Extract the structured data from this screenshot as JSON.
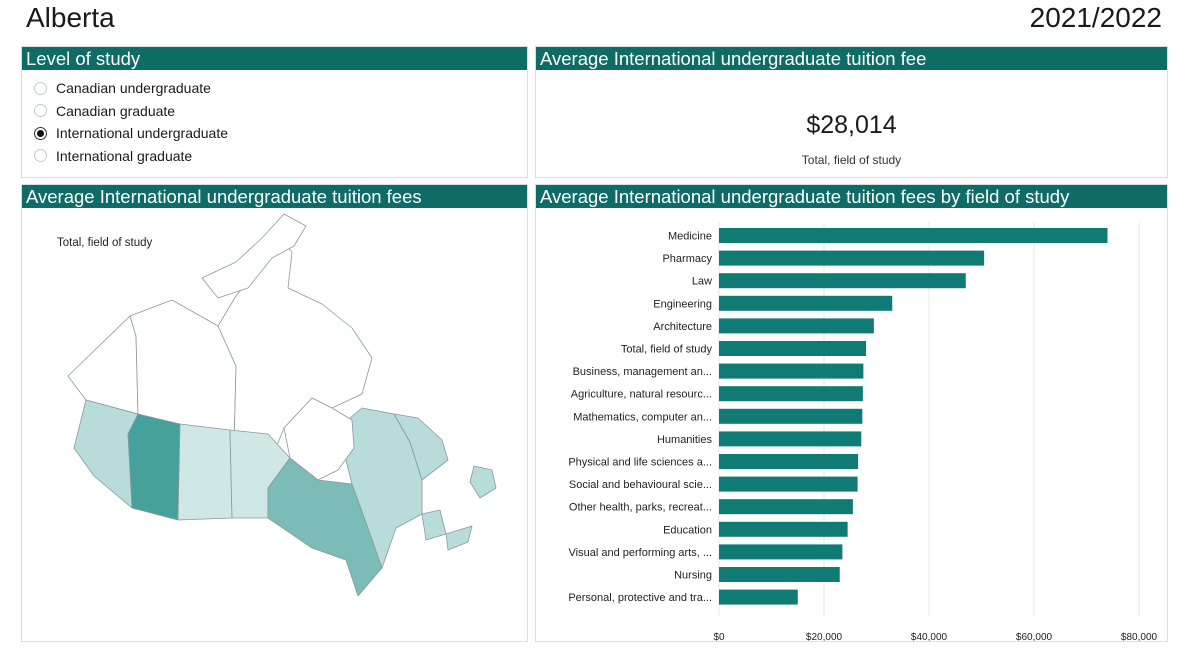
{
  "header": {
    "region": "Alberta",
    "year": "2021/2022"
  },
  "level_panel": {
    "title": "Level of study",
    "options": [
      {
        "label": "Canadian undergraduate",
        "selected": false
      },
      {
        "label": "Canadian graduate",
        "selected": false
      },
      {
        "label": "International undergraduate",
        "selected": true
      },
      {
        "label": "International graduate",
        "selected": false
      }
    ]
  },
  "average_panel": {
    "title": "Average International undergraduate tuition fee",
    "value": "$28,014",
    "caption": "Total, field of study"
  },
  "map_panel": {
    "title": "Average International undergraduate tuition fees",
    "subtitle": "Total, field of study",
    "colors": {
      "highlight": "#46a19c",
      "medium": "#7cbcb8",
      "light": "#b7dcda",
      "lighter": "#cfe7e5",
      "none": "#ffffff"
    }
  },
  "bar_panel": {
    "title": "Average International undergraduate tuition fees by field of study"
  },
  "chart_data": {
    "type": "bar",
    "orientation": "horizontal",
    "categories": [
      "Medicine",
      "Pharmacy",
      "Law",
      "Engineering",
      "Architecture",
      "Total, field of study",
      "Business, management an...",
      "Agriculture, natural resourc...",
      "Mathematics, computer an...",
      "Humanities",
      "Physical and life sciences a...",
      "Social and behavioural scie...",
      "Other health, parks, recreat...",
      "Education",
      "Visual and performing arts, ...",
      "Nursing",
      "Personal, protective and tra..."
    ],
    "values": [
      74000,
      50500,
      47000,
      33000,
      29500,
      28014,
      27500,
      27400,
      27300,
      27100,
      26500,
      26400,
      25500,
      24500,
      23500,
      23000,
      15000
    ],
    "xlim": [
      0,
      80000
    ],
    "ticks": [
      "$0",
      "$20,000",
      "$40,000",
      "$60,000",
      "$80,000"
    ],
    "bar_color": "#107a74",
    "grid": true
  }
}
